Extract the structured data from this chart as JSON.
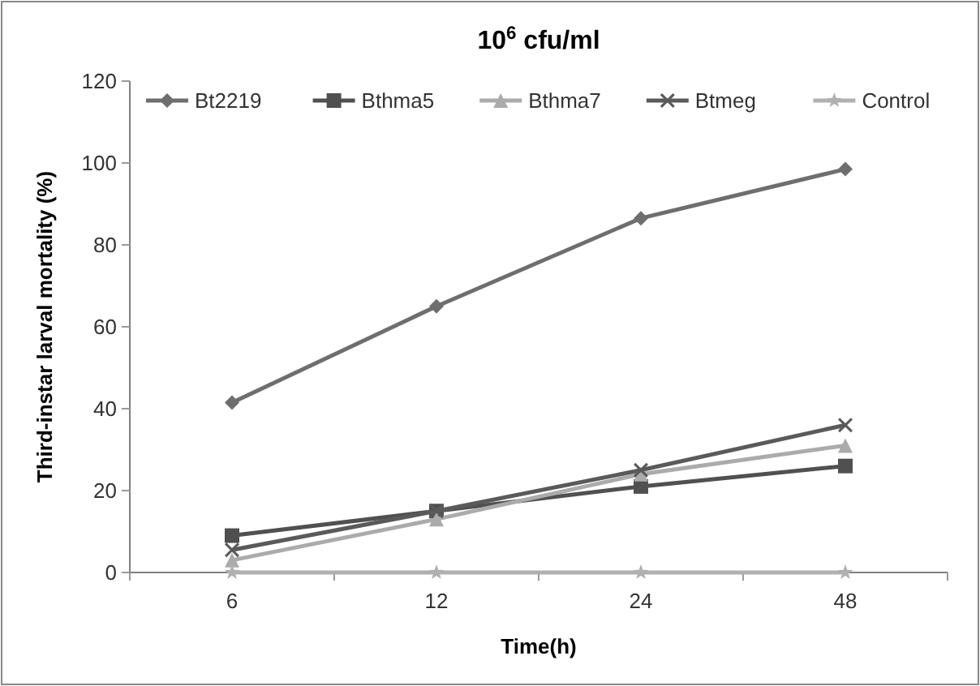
{
  "chart_data": {
    "type": "line",
    "title": "10$^{6}$ cfu/ml",
    "xlabel": "Time(h)",
    "ylabel": "Third-instar larval mortality (%)",
    "categories": [
      "6",
      "12",
      "24",
      "48"
    ],
    "series": [
      {
        "name": "Bt2219",
        "color": "#6e6e6e",
        "marker": "diamond",
        "values": [
          41.5,
          65,
          86.5,
          98.5
        ]
      },
      {
        "name": "Bthma5",
        "color": "#505050",
        "marker": "square",
        "values": [
          9,
          15,
          21,
          26
        ]
      },
      {
        "name": "Bthma7",
        "color": "#ababab",
        "marker": "triangle",
        "values": [
          3,
          13,
          24,
          31
        ]
      },
      {
        "name": "Btmeg",
        "color": "#5a5a5a",
        "marker": "cross",
        "values": [
          5.5,
          15,
          25,
          36
        ]
      },
      {
        "name": "Control",
        "color": "#b0b0b0",
        "marker": "star",
        "values": [
          0,
          0,
          0,
          0
        ]
      }
    ],
    "ylim": [
      0,
      120
    ],
    "yticks": [
      0,
      20,
      40,
      60,
      80,
      100,
      120
    ],
    "grid": false,
    "legend": "top"
  }
}
